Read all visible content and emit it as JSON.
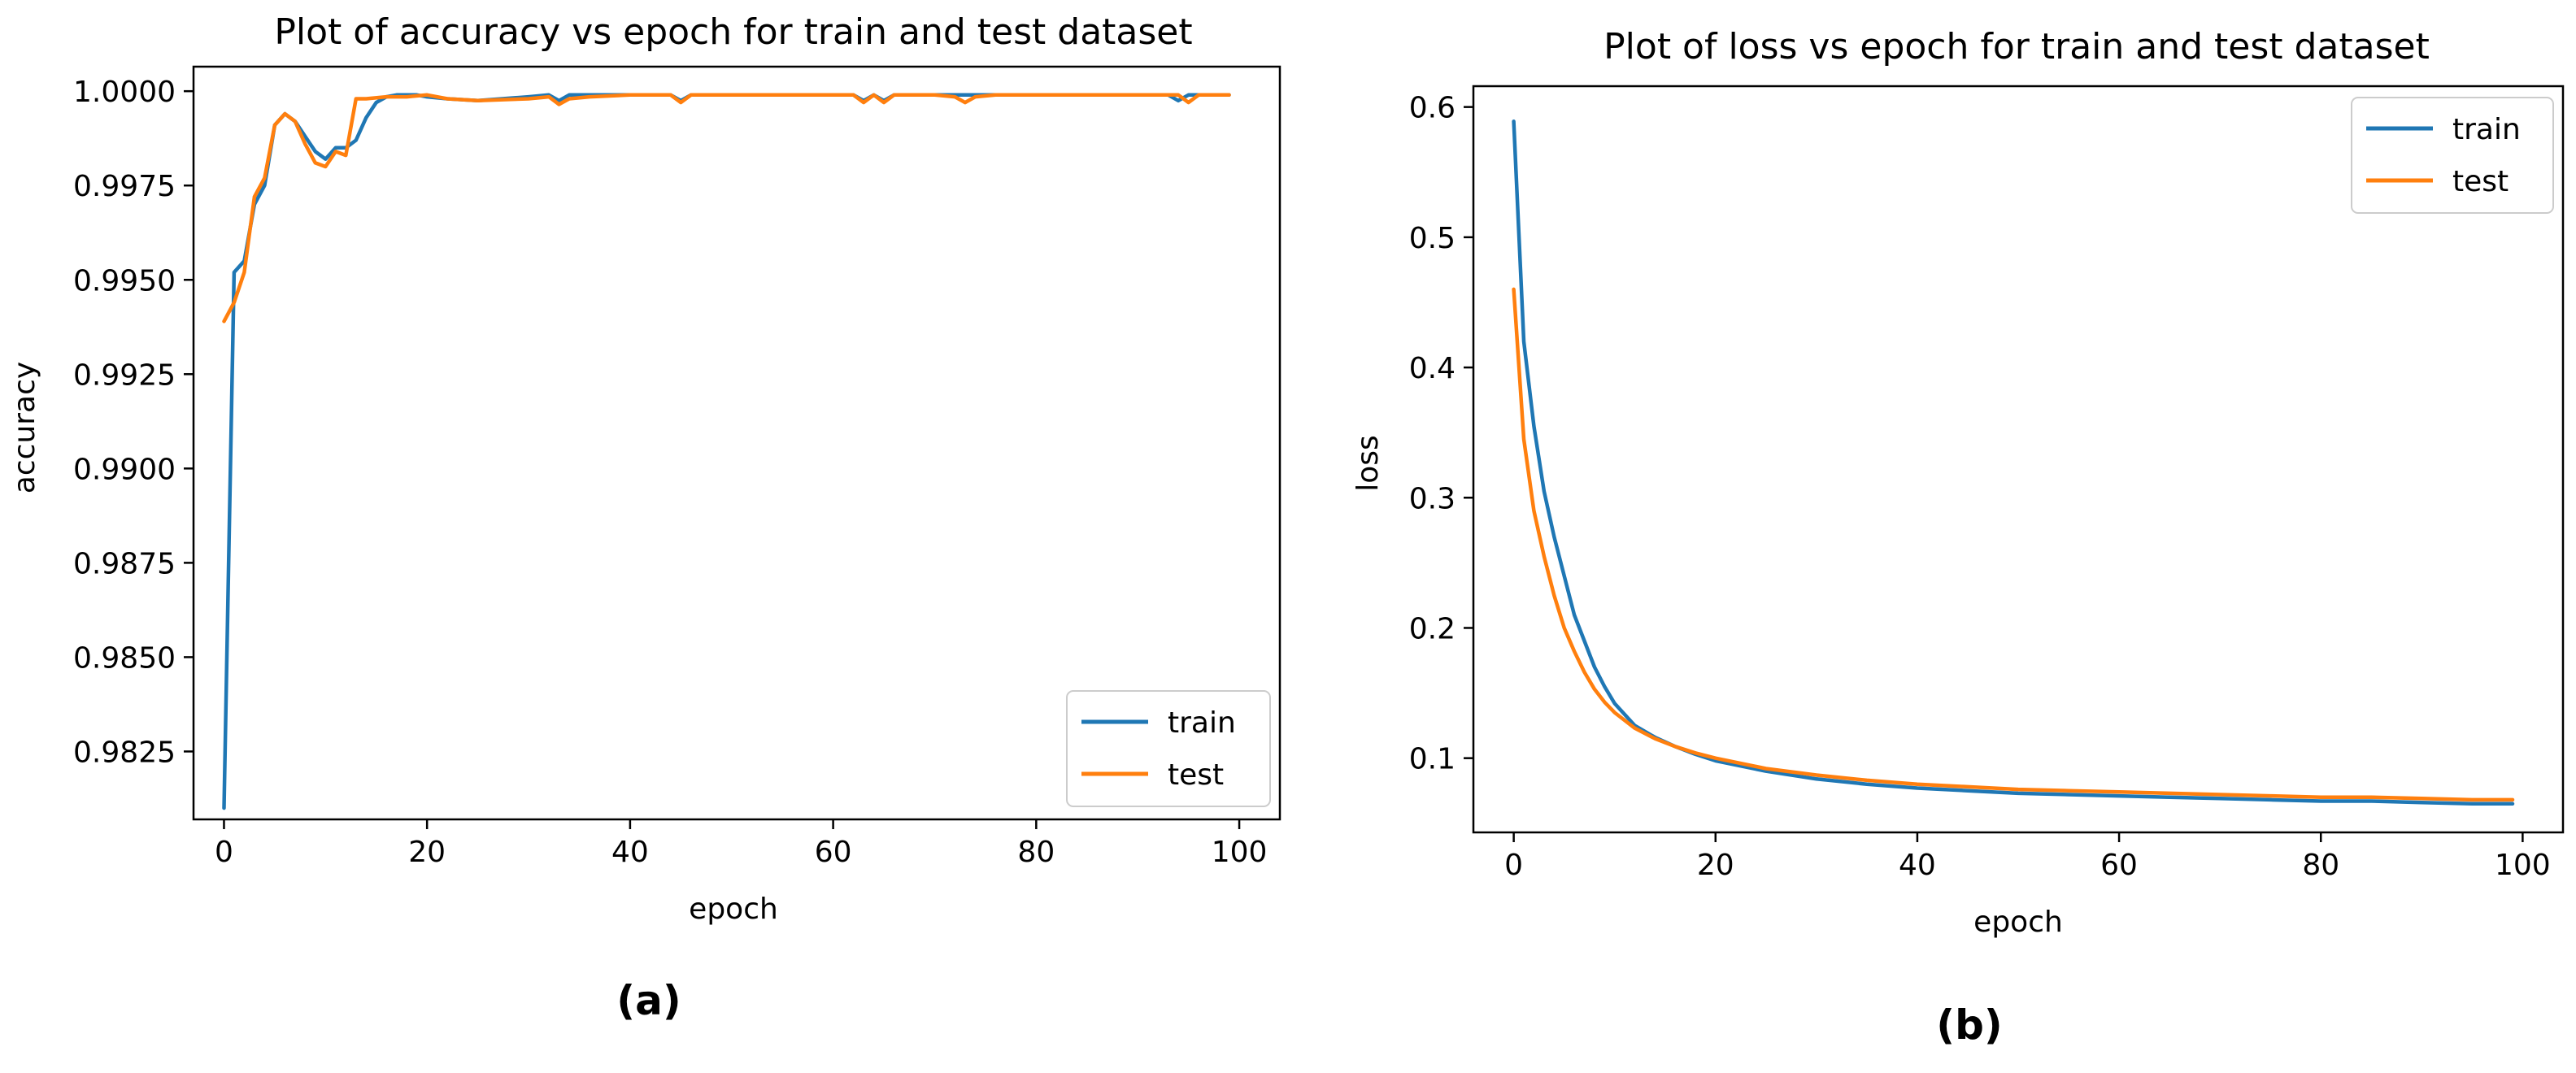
{
  "chart_data": [
    {
      "type": "line",
      "title": "Plot of accuracy vs epoch for train and test dataset",
      "xlabel": "epoch",
      "ylabel": "accuracy",
      "xlim": [
        -3,
        104
      ],
      "ylim": [
        0.9807,
        1.00065
      ],
      "xticks": [
        0,
        20,
        40,
        60,
        80,
        100
      ],
      "xtick_labels": [
        "0",
        "20",
        "40",
        "60",
        "80",
        "100"
      ],
      "yticks": [
        0.9825,
        0.985,
        0.9875,
        0.99,
        0.9925,
        0.995,
        0.9975,
        1.0
      ],
      "ytick_labels": [
        "0.9825",
        "0.9850",
        "0.9875",
        "0.9900",
        "0.9925",
        "0.9950",
        "0.9975",
        "1.0000"
      ],
      "legend_position": "lower-right",
      "panel_label": "(a)",
      "grid": false,
      "series": [
        {
          "name": "train",
          "color": "#1f77b4",
          "x": [
            0,
            1,
            2,
            3,
            4,
            5,
            6,
            7,
            8,
            9,
            10,
            11,
            12,
            13,
            14,
            15,
            16,
            17,
            18,
            19,
            20,
            22,
            25,
            30,
            32,
            33,
            34,
            36,
            40,
            44,
            45,
            46,
            48,
            50,
            55,
            60,
            62,
            63,
            64,
            65,
            66,
            67,
            70,
            75,
            80,
            85,
            90,
            93,
            94,
            95,
            99
          ],
          "y": [
            0.981,
            0.9952,
            0.9955,
            0.997,
            0.9975,
            0.9991,
            0.9994,
            0.9992,
            0.9988,
            0.9984,
            0.9982,
            0.9985,
            0.9985,
            0.9987,
            0.9993,
            0.9997,
            0.99985,
            0.9999,
            0.9999,
            0.9999,
            0.99985,
            0.9998,
            0.99975,
            0.99985,
            0.9999,
            0.99975,
            0.9999,
            0.9999,
            0.9999,
            0.9999,
            0.99975,
            0.9999,
            0.9999,
            0.9999,
            0.9999,
            0.9999,
            0.9999,
            0.99975,
            0.9999,
            0.99975,
            0.9999,
            0.9999,
            0.9999,
            0.9999,
            0.9999,
            0.9999,
            0.9999,
            0.9999,
            0.99975,
            0.9999,
            0.9999
          ]
        },
        {
          "name": "test",
          "color": "#ff7f0e",
          "x": [
            0,
            1,
            2,
            3,
            4,
            5,
            6,
            7,
            8,
            9,
            10,
            11,
            12,
            13,
            14,
            16,
            18,
            20,
            22,
            25,
            30,
            32,
            33,
            34,
            36,
            40,
            44,
            45,
            46,
            50,
            55,
            60,
            62,
            63,
            64,
            65,
            66,
            70,
            72,
            73,
            74,
            76,
            80,
            85,
            90,
            94,
            95,
            96,
            99
          ],
          "y": [
            0.9939,
            0.9944,
            0.9952,
            0.9972,
            0.9977,
            0.9991,
            0.9994,
            0.9992,
            0.9986,
            0.9981,
            0.998,
            0.9984,
            0.9983,
            0.9998,
            0.9998,
            0.99985,
            0.99985,
            0.9999,
            0.9998,
            0.99975,
            0.9998,
            0.99985,
            0.99965,
            0.9998,
            0.99985,
            0.9999,
            0.9999,
            0.9997,
            0.9999,
            0.9999,
            0.9999,
            0.9999,
            0.9999,
            0.9997,
            0.9999,
            0.9997,
            0.9999,
            0.9999,
            0.99985,
            0.9997,
            0.99985,
            0.9999,
            0.9999,
            0.9999,
            0.9999,
            0.9999,
            0.9997,
            0.9999,
            0.9999
          ]
        }
      ]
    },
    {
      "type": "line",
      "title": "Plot of loss vs epoch for train and test dataset",
      "xlabel": "epoch",
      "ylabel": "loss",
      "xlim": [
        -4,
        104
      ],
      "ylim": [
        0.043,
        0.616
      ],
      "xticks": [
        0,
        20,
        40,
        60,
        80,
        100
      ],
      "xtick_labels": [
        "0",
        "20",
        "40",
        "60",
        "80",
        "100"
      ],
      "yticks": [
        0.1,
        0.2,
        0.3,
        0.4,
        0.5,
        0.6
      ],
      "ytick_labels": [
        "0.1",
        "0.2",
        "0.3",
        "0.4",
        "0.5",
        "0.6"
      ],
      "legend_position": "upper-right",
      "panel_label": "(b)",
      "grid": false,
      "series": [
        {
          "name": "train",
          "color": "#1f77b4",
          "x": [
            0,
            1,
            2,
            3,
            4,
            5,
            6,
            7,
            8,
            9,
            10,
            12,
            14,
            16,
            18,
            20,
            25,
            30,
            35,
            40,
            45,
            50,
            55,
            60,
            65,
            70,
            75,
            80,
            85,
            90,
            95,
            99
          ],
          "y": [
            0.589,
            0.42,
            0.355,
            0.305,
            0.27,
            0.24,
            0.21,
            0.19,
            0.17,
            0.155,
            0.142,
            0.125,
            0.116,
            0.109,
            0.103,
            0.098,
            0.09,
            0.084,
            0.08,
            0.077,
            0.075,
            0.073,
            0.072,
            0.071,
            0.07,
            0.069,
            0.068,
            0.067,
            0.067,
            0.066,
            0.065,
            0.065
          ]
        },
        {
          "name": "test",
          "color": "#ff7f0e",
          "x": [
            0,
            1,
            2,
            3,
            4,
            5,
            6,
            7,
            8,
            9,
            10,
            12,
            14,
            16,
            18,
            20,
            25,
            30,
            35,
            40,
            45,
            50,
            55,
            60,
            65,
            70,
            75,
            80,
            85,
            90,
            95,
            99
          ],
          "y": [
            0.46,
            0.345,
            0.29,
            0.255,
            0.225,
            0.2,
            0.182,
            0.166,
            0.153,
            0.143,
            0.135,
            0.123,
            0.115,
            0.109,
            0.104,
            0.1,
            0.092,
            0.087,
            0.083,
            0.08,
            0.078,
            0.076,
            0.075,
            0.074,
            0.073,
            0.072,
            0.071,
            0.07,
            0.07,
            0.069,
            0.068,
            0.068
          ]
        }
      ]
    }
  ]
}
